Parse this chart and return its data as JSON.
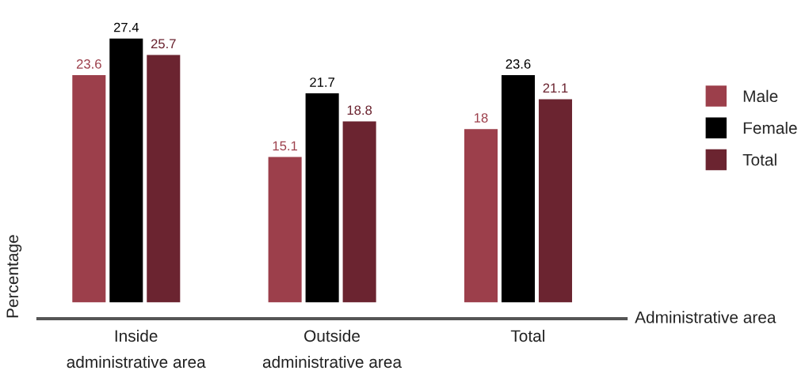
{
  "chart_data": {
    "type": "bar",
    "xlabel": "Administrative area",
    "ylabel": "Percentage",
    "categories": [
      "Inside\nadministrative area",
      "Outside\nadministrative area",
      "Total"
    ],
    "series": [
      {
        "name": "Male",
        "color": "#9c3f4b",
        "values": [
          23.6,
          15.1,
          18
        ]
      },
      {
        "name": "Female",
        "color": "#000000",
        "values": [
          27.4,
          21.7,
          23.6
        ]
      },
      {
        "name": "Total",
        "color": "#6b2430",
        "values": [
          25.7,
          18.8,
          21.1
        ]
      }
    ],
    "data_labels": true,
    "legend": "right",
    "grid": false
  }
}
